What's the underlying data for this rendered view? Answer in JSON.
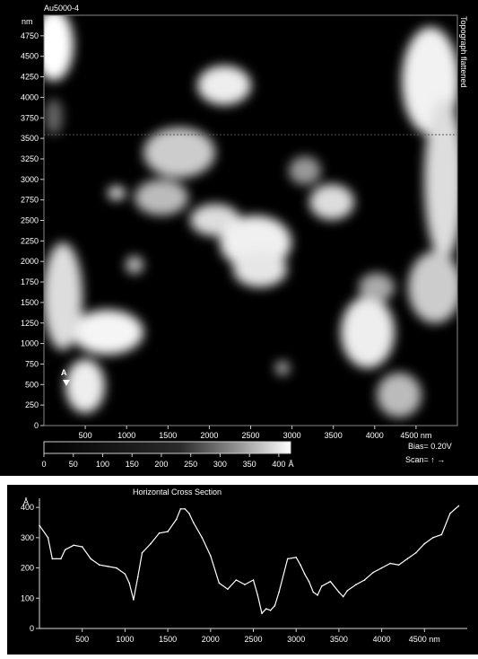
{
  "image_title": "Au5000-4",
  "side_label": "Topograph flattened",
  "colorbar": {
    "ticks": [
      "0",
      "50",
      "100",
      "150",
      "200",
      "250",
      "300",
      "350",
      "400"
    ],
    "unit": "Å",
    "range": [
      0,
      420
    ]
  },
  "bias_label": "Bias= 0.20V",
  "scan_label": "Scan= ↑ →",
  "marker_label": "A",
  "chart_data": [
    {
      "type": "heatmap",
      "title": "Au5000-4",
      "ylabel": "nm",
      "xlabel": "nm",
      "x_ticks": [
        "500",
        "1000",
        "1500",
        "2000",
        "2500",
        "3000",
        "3500",
        "4000",
        "4500 nm"
      ],
      "y_ticks": [
        "4750",
        "4500",
        "4250",
        "4000",
        "3750",
        "3500",
        "3250",
        "3000",
        "2750",
        "2500",
        "2250",
        "2000",
        "1750",
        "1500",
        "1250",
        "1000",
        "750",
        "500",
        "250",
        "0"
      ],
      "xlim": [
        0,
        5000
      ],
      "ylim": [
        0,
        5000
      ],
      "value_unit": "Å",
      "value_range": [
        0,
        420
      ],
      "cross_section_y": 3500
    },
    {
      "type": "line",
      "title": "Horizontal Cross Section",
      "ylabel": "Å",
      "xlabel": "nm",
      "x_ticks": [
        "500",
        "1000",
        "1500",
        "2000",
        "2500",
        "3000",
        "3500",
        "4000",
        "4500 nm"
      ],
      "y_ticks": [
        "400",
        "300",
        "200",
        "100",
        "0"
      ],
      "xlim": [
        0,
        5000
      ],
      "ylim": [
        0,
        430
      ],
      "series": [
        {
          "x": [
            0,
            100,
            150,
            250,
            300,
            400,
            500,
            600,
            700,
            800,
            900,
            1000,
            1050,
            1100,
            1150,
            1200,
            1300,
            1400,
            1500,
            1600,
            1650,
            1700,
            1750,
            1800,
            1900,
            2000,
            2100,
            2200,
            2300,
            2400,
            2500,
            2550,
            2600,
            2650,
            2700,
            2750,
            2800,
            2900,
            3000,
            3050,
            3100,
            3150,
            3200,
            3250,
            3300,
            3400,
            3500,
            3550,
            3600,
            3700,
            3800,
            3900,
            4000,
            4100,
            4200,
            4300,
            4400,
            4500,
            4600,
            4700,
            4800,
            4900
          ],
          "y": [
            340,
            300,
            230,
            230,
            260,
            275,
            270,
            230,
            210,
            205,
            200,
            180,
            150,
            95,
            170,
            250,
            280,
            315,
            320,
            360,
            395,
            395,
            380,
            350,
            300,
            240,
            150,
            130,
            160,
            145,
            160,
            110,
            50,
            65,
            60,
            75,
            120,
            230,
            235,
            210,
            180,
            155,
            120,
            110,
            140,
            155,
            120,
            105,
            125,
            145,
            160,
            185,
            200,
            215,
            210,
            230,
            250,
            280,
            300,
            310,
            380,
            405
          ]
        }
      ]
    }
  ]
}
